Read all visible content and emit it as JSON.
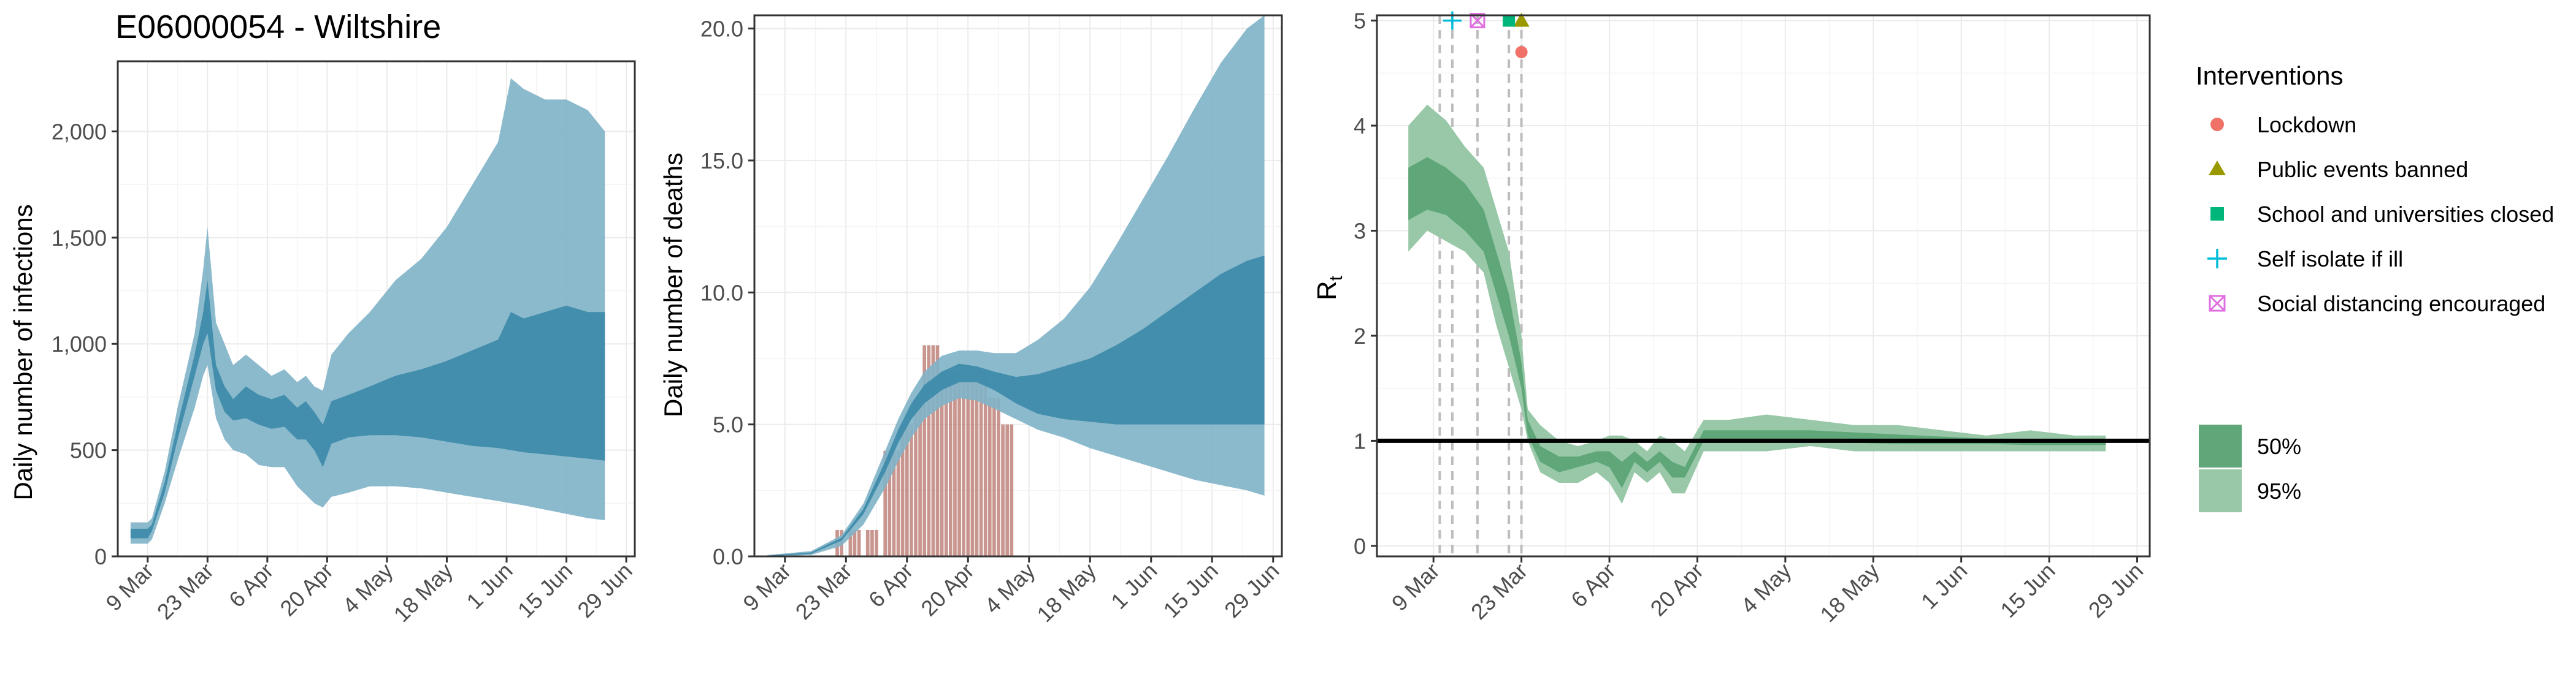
{
  "title": "E06000054 - Wiltshire",
  "colors": {
    "infections_95": "#7fb2c8",
    "infections_50": "#3a8aa8",
    "deaths_bar": "#b5736a",
    "rt_95": "#98c8a8",
    "rt_50": "#5fa679",
    "lockdown": "#f07167",
    "public_events": "#9a9a00",
    "school": "#00b67a",
    "self_isolate": "#00bcd8",
    "social_distancing": "#e06ee0"
  },
  "chart_data": [
    {
      "type": "area",
      "name": "infections",
      "ylabel": "Daily number of infections",
      "ylim": [
        0,
        2330
      ],
      "yticks": [
        0,
        500,
        1000,
        1500,
        2000
      ],
      "ytick_labels": [
        "0",
        "500",
        "1,000",
        "1,500",
        "2,000"
      ],
      "xlim": [
        "2020-03-02",
        "2020-07-01"
      ],
      "xticks": [
        "2020-03-09",
        "2020-03-23",
        "2020-04-06",
        "2020-04-20",
        "2020-05-04",
        "2020-05-18",
        "2020-06-01",
        "2020-06-15",
        "2020-06-29"
      ],
      "xtick_labels": [
        "9 Mar",
        "23 Mar",
        "6 Apr",
        "20 Apr",
        "4 May",
        "18 May",
        "1 Jun",
        "15 Jun",
        "29 Jun"
      ],
      "grid": true,
      "x": [
        "2020-03-05",
        "2020-03-09",
        "2020-03-10",
        "2020-03-13",
        "2020-03-16",
        "2020-03-20",
        "2020-03-22",
        "2020-03-23",
        "2020-03-25",
        "2020-03-27",
        "2020-03-29",
        "2020-04-01",
        "2020-04-04",
        "2020-04-07",
        "2020-04-10",
        "2020-04-13",
        "2020-04-15",
        "2020-04-17",
        "2020-04-19",
        "2020-04-21",
        "2020-04-25",
        "2020-04-30",
        "2020-05-06",
        "2020-05-12",
        "2020-05-18",
        "2020-05-24",
        "2020-05-30",
        "2020-06-02",
        "2020-06-05",
        "2020-06-10",
        "2020-06-15",
        "2020-06-20",
        "2020-06-24"
      ],
      "series": [
        {
          "band": "95%",
          "lower": [
            60,
            60,
            80,
            250,
            450,
            700,
            850,
            900,
            650,
            550,
            500,
            480,
            430,
            420,
            420,
            330,
            290,
            250,
            230,
            280,
            300,
            330,
            330,
            320,
            300,
            280,
            260,
            250,
            240,
            220,
            200,
            180,
            170
          ],
          "upper": [
            160,
            160,
            180,
            400,
            700,
            1050,
            1350,
            1550,
            1100,
            1000,
            900,
            950,
            900,
            850,
            880,
            820,
            850,
            800,
            780,
            950,
            1050,
            1150,
            1300,
            1400,
            1550,
            1750,
            1950,
            2250,
            2200,
            2150,
            2150,
            2100,
            2000
          ]
        },
        {
          "band": "50%",
          "lower": [
            85,
            85,
            120,
            300,
            550,
            850,
            1000,
            1050,
            780,
            680,
            640,
            650,
            620,
            600,
            610,
            550,
            550,
            500,
            420,
            530,
            560,
            570,
            570,
            560,
            540,
            520,
            510,
            500,
            490,
            480,
            470,
            460,
            450
          ],
          "upper": [
            130,
            130,
            150,
            350,
            620,
            950,
            1150,
            1300,
            900,
            800,
            740,
            800,
            760,
            740,
            760,
            700,
            730,
            680,
            620,
            730,
            760,
            800,
            850,
            880,
            920,
            970,
            1020,
            1150,
            1120,
            1150,
            1180,
            1150,
            1150
          ]
        }
      ]
    },
    {
      "type": "area",
      "name": "deaths",
      "ylabel": "Daily number of deaths",
      "ylim": [
        0,
        20.5
      ],
      "yticks": [
        0,
        5,
        10,
        15,
        20
      ],
      "ytick_labels": [
        "0.0",
        "5.0",
        "10.0",
        "15.0",
        "20.0"
      ],
      "xlim": [
        "2020-03-02",
        "2020-07-01"
      ],
      "xticks": [
        "2020-03-09",
        "2020-03-23",
        "2020-04-06",
        "2020-04-20",
        "2020-05-04",
        "2020-05-18",
        "2020-06-01",
        "2020-06-15",
        "2020-06-29"
      ],
      "xtick_labels": [
        "9 Mar",
        "23 Mar",
        "6 Apr",
        "20 Apr",
        "4 May",
        "18 May",
        "1 Jun",
        "15 Jun",
        "29 Jun"
      ],
      "grid": true,
      "x": [
        "2020-03-05",
        "2020-03-15",
        "2020-03-22",
        "2020-03-27",
        "2020-04-01",
        "2020-04-04",
        "2020-04-07",
        "2020-04-10",
        "2020-04-14",
        "2020-04-18",
        "2020-04-22",
        "2020-04-26",
        "2020-05-01",
        "2020-05-06",
        "2020-05-12",
        "2020-05-18",
        "2020-05-24",
        "2020-05-30",
        "2020-06-05",
        "2020-06-11",
        "2020-06-17",
        "2020-06-23",
        "2020-06-27"
      ],
      "series": [
        {
          "band": "95%",
          "lower": [
            0,
            0.05,
            0.4,
            1.2,
            2.6,
            3.6,
            4.5,
            5.2,
            5.7,
            6.0,
            5.9,
            5.6,
            5.2,
            4.8,
            4.5,
            4.1,
            3.8,
            3.5,
            3.2,
            2.9,
            2.7,
            2.5,
            2.3
          ],
          "upper": [
            0.05,
            0.2,
            0.8,
            2.0,
            4.0,
            5.2,
            6.2,
            7.0,
            7.6,
            7.8,
            7.8,
            7.7,
            7.7,
            8.2,
            9.0,
            10.2,
            11.8,
            13.5,
            15.2,
            17.0,
            18.7,
            20.0,
            20.5
          ]
        },
        {
          "band": "50%",
          "lower": [
            0,
            0.1,
            0.6,
            1.6,
            3.2,
            4.3,
            5.2,
            5.8,
            6.3,
            6.6,
            6.6,
            6.3,
            5.8,
            5.4,
            5.2,
            5.1,
            5.0,
            5.0,
            5.0,
            5.0,
            5.0,
            5.0,
            5.0
          ],
          "upper": [
            0.03,
            0.15,
            0.7,
            1.8,
            3.6,
            4.8,
            5.8,
            6.5,
            7.0,
            7.3,
            7.2,
            7.0,
            6.8,
            6.9,
            7.2,
            7.5,
            8.0,
            8.6,
            9.3,
            10.0,
            10.7,
            11.2,
            11.4
          ]
        }
      ],
      "observed": {
        "type": "bar",
        "x": [
          "2020-03-21",
          "2020-03-22",
          "2020-03-24",
          "2020-03-25",
          "2020-03-26",
          "2020-03-28",
          "2020-03-29",
          "2020-03-30",
          "2020-04-01",
          "2020-04-02",
          "2020-04-03",
          "2020-04-04",
          "2020-04-05",
          "2020-04-06",
          "2020-04-07",
          "2020-04-08",
          "2020-04-09",
          "2020-04-10",
          "2020-04-11",
          "2020-04-12",
          "2020-04-13",
          "2020-04-14",
          "2020-04-15",
          "2020-04-16",
          "2020-04-17",
          "2020-04-18",
          "2020-04-19",
          "2020-04-20",
          "2020-04-21",
          "2020-04-22",
          "2020-04-23",
          "2020-04-24",
          "2020-04-25",
          "2020-04-26",
          "2020-04-27",
          "2020-04-28",
          "2020-04-29",
          "2020-04-30"
        ],
        "values": [
          1,
          1,
          1,
          1,
          1,
          1,
          1,
          1,
          4,
          4,
          4,
          4,
          5,
          5,
          5,
          6,
          6,
          8,
          8,
          8,
          8,
          7,
          7,
          7,
          7,
          7,
          7,
          7,
          7,
          7,
          7,
          7,
          6,
          6,
          6,
          5,
          5,
          5
        ]
      }
    },
    {
      "type": "area",
      "name": "rt",
      "ylabel": "R",
      "ylabel_sub": "t",
      "ylim": [
        -0.1,
        5.05
      ],
      "yticks": [
        0,
        1,
        2,
        3,
        4,
        5
      ],
      "ytick_labels": [
        "0",
        "1",
        "2",
        "3",
        "4",
        "5"
      ],
      "xlim": [
        "2020-02-29",
        "2020-07-01"
      ],
      "xticks": [
        "2020-03-09",
        "2020-03-23",
        "2020-04-06",
        "2020-04-20",
        "2020-05-04",
        "2020-05-18",
        "2020-06-01",
        "2020-06-15",
        "2020-06-29"
      ],
      "xtick_labels": [
        "9 Mar",
        "23 Mar",
        "6 Apr",
        "20 Apr",
        "4 May",
        "18 May",
        "1 Jun",
        "15 Jun",
        "29 Jun"
      ],
      "grid": true,
      "reference_line": 1,
      "x": [
        "2020-03-05",
        "2020-03-08",
        "2020-03-11",
        "2020-03-14",
        "2020-03-17",
        "2020-03-19",
        "2020-03-21",
        "2020-03-23",
        "2020-03-24",
        "2020-03-26",
        "2020-03-29",
        "2020-04-01",
        "2020-04-04",
        "2020-04-06",
        "2020-04-08",
        "2020-04-10",
        "2020-04-12",
        "2020-04-14",
        "2020-04-16",
        "2020-04-18",
        "2020-04-21",
        "2020-04-25",
        "2020-05-01",
        "2020-05-08",
        "2020-05-15",
        "2020-05-22",
        "2020-05-29",
        "2020-06-05",
        "2020-06-12",
        "2020-06-19",
        "2020-06-24"
      ],
      "series": [
        {
          "band": "95%",
          "lower": [
            2.8,
            3.0,
            2.9,
            2.8,
            2.6,
            2.1,
            1.7,
            1.3,
            1.0,
            0.7,
            0.6,
            0.6,
            0.7,
            0.6,
            0.4,
            0.7,
            0.6,
            0.7,
            0.5,
            0.5,
            0.9,
            0.9,
            0.9,
            0.95,
            0.9,
            0.9,
            0.9,
            0.9,
            0.9,
            0.9,
            0.9
          ],
          "upper": [
            4.0,
            4.2,
            4.05,
            3.8,
            3.6,
            3.2,
            2.8,
            2.0,
            1.3,
            1.15,
            1.0,
            0.95,
            1.0,
            1.05,
            1.05,
            1.0,
            0.9,
            1.05,
            1.0,
            0.9,
            1.2,
            1.2,
            1.25,
            1.2,
            1.15,
            1.15,
            1.1,
            1.05,
            1.1,
            1.05,
            1.05
          ]
        },
        {
          "band": "50%",
          "lower": [
            3.1,
            3.2,
            3.15,
            3.0,
            2.8,
            2.4,
            2.0,
            1.5,
            1.05,
            0.8,
            0.7,
            0.75,
            0.8,
            0.75,
            0.55,
            0.8,
            0.7,
            0.8,
            0.65,
            0.65,
            1.0,
            1.0,
            0.98,
            1.0,
            0.98,
            0.97,
            0.97,
            0.97,
            0.96,
            0.96,
            0.96
          ],
          "upper": [
            3.6,
            3.7,
            3.6,
            3.45,
            3.2,
            2.8,
            2.4,
            1.75,
            1.2,
            0.95,
            0.85,
            0.85,
            0.9,
            0.9,
            0.8,
            0.9,
            0.8,
            0.9,
            0.8,
            0.75,
            1.1,
            1.1,
            1.1,
            1.1,
            1.08,
            1.06,
            1.04,
            1.02,
            1.02,
            1.0,
            1.0
          ]
        }
      ],
      "interventions": [
        {
          "label": "Lockdown",
          "date": "2020-03-23",
          "y": 4.7,
          "color_key": "lockdown",
          "shape": "circle"
        },
        {
          "label": "Public events banned",
          "date": "2020-03-23",
          "y": 5.0,
          "color_key": "public_events",
          "shape": "triangle"
        },
        {
          "label": "School and universities closed",
          "date": "2020-03-21",
          "y": 5.0,
          "color_key": "school",
          "shape": "square"
        },
        {
          "label": "Self isolate if ill",
          "date": "2020-03-12",
          "y": 5.0,
          "color_key": "self_isolate",
          "shape": "plus"
        },
        {
          "label": "Social distancing encouraged",
          "date": "2020-03-16",
          "y": 5.0,
          "color_key": "social_distancing",
          "shape": "boxcross"
        }
      ],
      "intervention_lines": [
        "2020-03-10",
        "2020-03-12",
        "2020-03-16",
        "2020-03-21",
        "2020-03-23"
      ]
    }
  ],
  "legend": {
    "interventions_title": "Interventions",
    "bands": [
      "50%",
      "95%"
    ]
  }
}
